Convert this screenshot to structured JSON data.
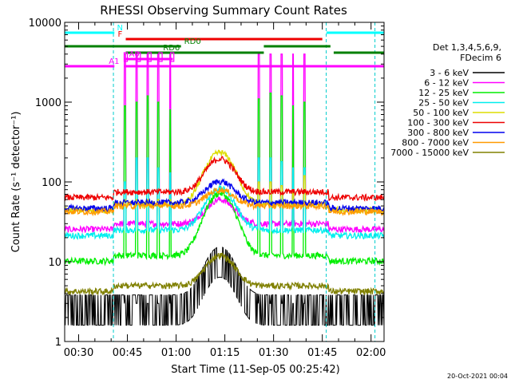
{
  "chart_data": {
    "type": "line",
    "title": "RHESSI Observing Summary Count Rates",
    "xlabel": "Start Time (11-Sep-05 00:25:42)",
    "ylabel": "Count Rate (s⁻¹ detector⁻¹)",
    "yscale": "log",
    "ylim": [
      1,
      10000
    ],
    "xlim_minutes": [
      25.7,
      124
    ],
    "y_ticks": [
      {
        "value": 1,
        "label": "1"
      },
      {
        "value": 10,
        "label": "10"
      },
      {
        "value": 100,
        "label": "100"
      },
      {
        "value": 1000,
        "label": "1000"
      },
      {
        "value": 10000,
        "label": "10000"
      }
    ],
    "x_ticks": [
      {
        "value": 30,
        "label": "00:30"
      },
      {
        "value": 45,
        "label": "00:45"
      },
      {
        "value": 60,
        "label": "01:00"
      },
      {
        "value": 75,
        "label": "01:15"
      },
      {
        "value": 90,
        "label": "01:30"
      },
      {
        "value": 105,
        "label": "01:45"
      },
      {
        "value": 120,
        "label": "02:00"
      }
    ],
    "legend_header": [
      "Det 1,3,4,5,6,9,",
      "FDecim 6"
    ],
    "series": [
      {
        "name": "3 - 6 keV",
        "color": "#000000",
        "baseline": 1.6,
        "peak": 4,
        "spike": 2,
        "spike_levels": [
          3,
          3,
          3,
          3,
          3,
          3,
          3,
          3,
          3,
          3
        ]
      },
      {
        "name": "6 - 12 keV",
        "color": "#ff00ff",
        "baseline": 30,
        "peak": 2,
        "spike": 1,
        "spike_levels": [
          4000,
          4000,
          4000,
          4000,
          4000,
          4000,
          4000,
          4000,
          4000,
          4000
        ]
      },
      {
        "name": "12 - 25 keV",
        "color": "#00ee00",
        "baseline": 12,
        "peak": 6,
        "spike": 1,
        "spike_levels": [
          900,
          1000,
          1200,
          1000,
          800,
          1100,
          1300,
          1200,
          900,
          1000
        ]
      },
      {
        "name": "25 - 50 keV",
        "color": "#00eeee",
        "baseline": 25,
        "peak": 3.3,
        "spike": 1,
        "spike_levels": [
          100,
          200,
          200,
          150,
          130,
          200,
          200,
          180,
          150,
          150
        ]
      },
      {
        "name": "50 - 100 keV",
        "color": "#dddd00",
        "baseline": 52,
        "peak": 4.5,
        "spike": 1,
        "spike_levels": [
          60,
          60,
          60,
          60,
          60,
          100,
          100,
          90,
          80,
          120
        ]
      },
      {
        "name": "100 - 300 keV",
        "color": "#ee0000",
        "baseline": 75,
        "peak": 2.6,
        "spike": 1,
        "spike_levels": [
          70,
          70,
          70,
          70,
          70,
          70,
          70,
          70,
          70,
          70
        ]
      },
      {
        "name": "300 - 800 keV",
        "color": "#0000ee",
        "baseline": 55,
        "peak": 1.85,
        "spike": 1,
        "spike_levels": [
          50,
          50,
          50,
          50,
          50,
          50,
          50,
          50,
          50,
          50
        ]
      },
      {
        "name": "800 - 7000 keV",
        "color": "#ff9900",
        "baseline": 50,
        "peak": 1.6,
        "spike": 1,
        "spike_levels": [
          50,
          50,
          50,
          50,
          50,
          50,
          50,
          50,
          50,
          50
        ]
      },
      {
        "name": "7000 - 15000 keV",
        "color": "#808000",
        "baseline": 5,
        "peak": 2.4,
        "spike": 1,
        "spike_levels": [
          5,
          5,
          5,
          5,
          5,
          5,
          5,
          5,
          5,
          5
        ]
      }
    ],
    "spike_times_minutes": [
      44.2,
      47.9,
      51.2,
      54.5,
      58.2,
      85.5,
      89.0,
      92.5,
      96.0,
      99.5
    ],
    "saa_boundaries_minutes": [
      40.7,
      106.2,
      121.2
    ],
    "flag_bars": [
      {
        "label": "N",
        "color": "#00ffff",
        "segments": [
          [
            25.7,
            41.0
          ],
          [
            106.3,
            124
          ]
        ],
        "level": 0
      },
      {
        "label": "F",
        "color": "#ee0000",
        "segments": [
          [
            44.5,
            105.0
          ]
        ],
        "level": 1
      },
      {
        "label": "RD0",
        "color": "#008000",
        "segments": [
          [
            25.7,
            61.5
          ],
          [
            87.0,
            107.5
          ]
        ],
        "level": 2
      },
      {
        "label": "RD6",
        "color": "#008000",
        "segments": [
          [
            44.5,
            87.0
          ],
          [
            108.5,
            124
          ]
        ],
        "level": 3
      },
      {
        "label": "A0",
        "color": "#ff00ff",
        "segments": [
          [
            44.2,
            59.0
          ]
        ],
        "level": 4
      },
      {
        "label": "A1",
        "color": "#ff00ff",
        "segments": [
          [
            25.7,
            41.0
          ],
          [
            44.2,
            124
          ]
        ],
        "level": 5
      }
    ],
    "flag_rectangles": [
      {
        "label": "A0",
        "color": "#ff00ff",
        "segments": [
          [
            44.0,
            45.0
          ],
          [
            48.0,
            49.0
          ],
          [
            51.3,
            52.3
          ],
          [
            54.7,
            55.7
          ],
          [
            58.3,
            59.3
          ]
        ]
      }
    ],
    "footer_date": "20-Oct-2021 00:04"
  }
}
